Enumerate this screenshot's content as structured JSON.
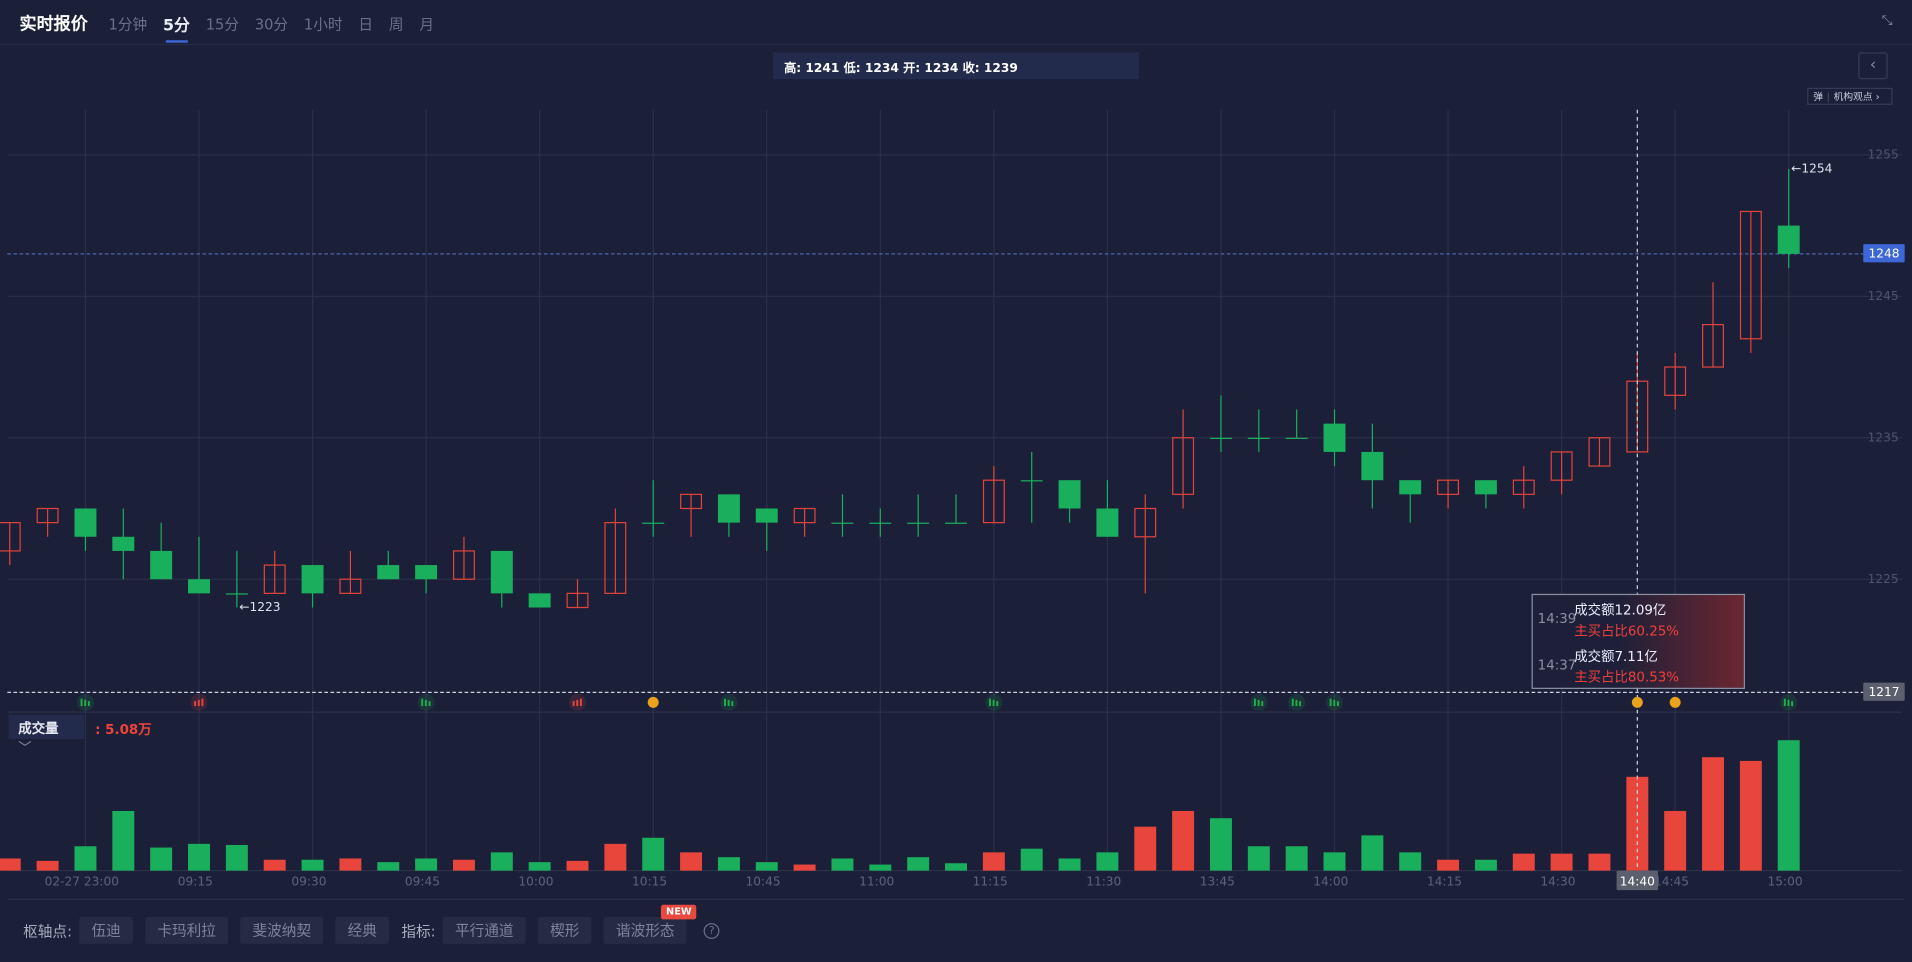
{
  "header": {
    "title": "实时报价",
    "tabs": [
      "1分钟",
      "5分",
      "15分",
      "30分",
      "1小时",
      "日",
      "周",
      "月"
    ],
    "active_tab": 1,
    "collapse_icon": "shrink-icon"
  },
  "ohlc_box": "高: 1241 低: 1234 开: 1234 收: 1239",
  "inst_button": {
    "left": "弹",
    "label": "机构观点 ›"
  },
  "colors": {
    "up": "#e0443a",
    "down": "#1aaf5d",
    "accent": "#3d66d6"
  },
  "chart_data": {
    "type": "candlestick",
    "y_ticks": [
      1225,
      1235,
      1245,
      1255
    ],
    "ylim": [
      1216,
      1256
    ],
    "candles": [
      [
        1227,
        1229,
        1226,
        1229
      ],
      [
        1229,
        1230,
        1228,
        1230
      ],
      [
        1230,
        1230,
        1227,
        1228
      ],
      [
        1228,
        1230,
        1225,
        1227
      ],
      [
        1227,
        1229,
        1225,
        1225
      ],
      [
        1225,
        1228,
        1224,
        1224
      ],
      [
        1224,
        1227,
        1223,
        1224
      ],
      [
        1224,
        1227,
        1224,
        1226
      ],
      [
        1226,
        1226,
        1223,
        1224
      ],
      [
        1224,
        1227,
        1224,
        1225
      ],
      [
        1226,
        1227,
        1225,
        1225
      ],
      [
        1226,
        1226,
        1224,
        1225
      ],
      [
        1225,
        1228,
        1225,
        1227
      ],
      [
        1227,
        1227,
        1223,
        1224
      ],
      [
        1224,
        1224,
        1223,
        1223
      ],
      [
        1223,
        1225,
        1223,
        1224
      ],
      [
        1224,
        1230,
        1224,
        1229
      ],
      [
        1229,
        1232,
        1228,
        1229
      ],
      [
        1230,
        1231,
        1228,
        1231
      ],
      [
        1231,
        1231,
        1228,
        1229
      ],
      [
        1230,
        1230,
        1227,
        1229
      ],
      [
        1229,
        1230,
        1228,
        1230
      ],
      [
        1229,
        1231,
        1228,
        1229
      ],
      [
        1229,
        1230,
        1228,
        1229
      ],
      [
        1229,
        1231,
        1228,
        1229
      ],
      [
        1229,
        1231,
        1229,
        1229
      ],
      [
        1229,
        1233,
        1229,
        1232
      ],
      [
        1232,
        1234,
        1229,
        1232
      ],
      [
        1232,
        1232,
        1229,
        1230
      ],
      [
        1230,
        1232,
        1228,
        1228
      ],
      [
        1228,
        1231,
        1224,
        1230
      ],
      [
        1231,
        1237,
        1230,
        1235
      ],
      [
        1235,
        1238,
        1234,
        1235
      ],
      [
        1235,
        1237,
        1234,
        1235
      ],
      [
        1235,
        1237,
        1235,
        1235
      ],
      [
        1236,
        1237,
        1233,
        1234
      ],
      [
        1234,
        1236,
        1230,
        1232
      ],
      [
        1232,
        1232,
        1229,
        1231
      ],
      [
        1231,
        1232,
        1230,
        1232
      ],
      [
        1232,
        1232,
        1230,
        1231
      ],
      [
        1231,
        1233,
        1230,
        1232
      ],
      [
        1232,
        1234,
        1231,
        1234
      ],
      [
        1233,
        1235,
        1233,
        1235
      ],
      [
        1234,
        1241,
        1234,
        1239
      ],
      [
        1238,
        1241,
        1237,
        1240
      ],
      [
        1240,
        1246,
        1240,
        1243
      ],
      [
        1242,
        1251,
        1241,
        1251
      ],
      [
        1250,
        1254,
        1247,
        1248
      ]
    ],
    "volumes": [
      0.66,
      0.53,
      1.32,
      3.23,
      1.25,
      1.45,
      1.39,
      0.59,
      0.59,
      0.66,
      0.46,
      0.66,
      0.59,
      0.99,
      0.46,
      0.53,
      1.45,
      1.78,
      0.99,
      0.73,
      0.46,
      0.33,
      0.66,
      0.33,
      0.73,
      0.4,
      0.99,
      1.19,
      0.66,
      0.99,
      2.38,
      3.23,
      2.84,
      1.32,
      1.32,
      0.99,
      1.91,
      0.99,
      0.59,
      0.59,
      0.92,
      0.92,
      0.92,
      5.08,
      3.23,
      6.14,
      5.94,
      7.06
    ],
    "volume_up": [
      1,
      1,
      0,
      0,
      0,
      0,
      0,
      1,
      0,
      1,
      0,
      0,
      1,
      0,
      0,
      1,
      1,
      0,
      1,
      0,
      0,
      1,
      0,
      0,
      0,
      0,
      1,
      0,
      0,
      0,
      1,
      1,
      0,
      0,
      0,
      0,
      0,
      0,
      1,
      0,
      1,
      1,
      1,
      1,
      1,
      1,
      1,
      0
    ],
    "x_labels": [
      {
        "i": 2,
        "t": "02-27 23:00"
      },
      {
        "i": 5,
        "t": "09:15"
      },
      {
        "i": 8,
        "t": "09:30"
      },
      {
        "i": 11,
        "t": "09:45"
      },
      {
        "i": 14,
        "t": "10:00"
      },
      {
        "i": 17,
        "t": "10:15"
      },
      {
        "i": 20,
        "t": "10:45"
      },
      {
        "i": 23,
        "t": "11:00"
      },
      {
        "i": 26,
        "t": "11:15"
      },
      {
        "i": 29,
        "t": "11:30"
      },
      {
        "i": 32,
        "t": "13:45"
      },
      {
        "i": 35,
        "t": "14:00"
      },
      {
        "i": 38,
        "t": "14:15"
      },
      {
        "i": 41,
        "t": "14:30"
      },
      {
        "i": 43,
        "t": "14:40"
      },
      {
        "i": 44,
        "t": "14:45"
      },
      {
        "i": 47,
        "t": "15:00"
      }
    ],
    "highlight_x_index": 43,
    "annotations": {
      "low": {
        "i": 6,
        "t": "1223"
      },
      "high": {
        "i": 47,
        "t": "1254"
      }
    },
    "current_price": {
      "v": 1248,
      "t": "1248"
    },
    "crosshair_price": {
      "v": 1217,
      "t": "1217"
    },
    "markers": [
      {
        "i": 2,
        "k": "green-bars"
      },
      {
        "i": 5,
        "k": "red-bars"
      },
      {
        "i": 11,
        "k": "green-bars"
      },
      {
        "i": 15,
        "k": "red-bars"
      },
      {
        "i": 17,
        "k": "coin"
      },
      {
        "i": 19,
        "k": "green-bars"
      },
      {
        "i": 26,
        "k": "green-bars"
      },
      {
        "i": 33,
        "k": "green-bars"
      },
      {
        "i": 34,
        "k": "green-bars"
      },
      {
        "i": 35,
        "k": "green-bars"
      },
      {
        "i": 43,
        "k": "coin"
      },
      {
        "i": 44,
        "k": "coin"
      },
      {
        "i": 47,
        "k": "green-bars"
      }
    ]
  },
  "tooltip": [
    {
      "time": "14:39",
      "amount": "成交额12.09亿",
      "ratio": "主买占比60.25%"
    },
    {
      "time": "14:37",
      "amount": "成交额7.11亿",
      "ratio": "主买占比80.53%"
    }
  ],
  "volume": {
    "selector": "成交量",
    "value": ": 5.08万"
  },
  "bottom": {
    "pivot_label": "枢轴点:",
    "pivots": [
      "伍迪",
      "卡玛利拉",
      "斐波纳契",
      "经典"
    ],
    "indicator_label": "指标:",
    "indicators": [
      "平行通道",
      "楔形",
      "谐波形态"
    ],
    "new_badge": "NEW"
  }
}
